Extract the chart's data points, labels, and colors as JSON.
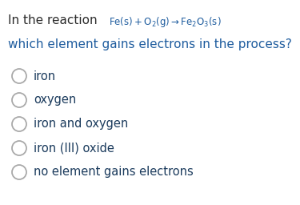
{
  "background_color": "#ffffff",
  "text_dark": "#2c2c2c",
  "formula_color": "#1e5c9e",
  "question_color": "#1e5c9e",
  "option_color": "#1a3a5c",
  "circle_edgecolor": "#aaaaaa",
  "figsize": [
    3.75,
    2.56
  ],
  "dpi": 100,
  "line1_prefix": "In the reaction ",
  "line2": "which element gains electrons in the process?",
  "options": [
    "iron",
    "oxygen",
    "iron and oxygen",
    "iron (III) oxide",
    "no element gains electrons"
  ]
}
